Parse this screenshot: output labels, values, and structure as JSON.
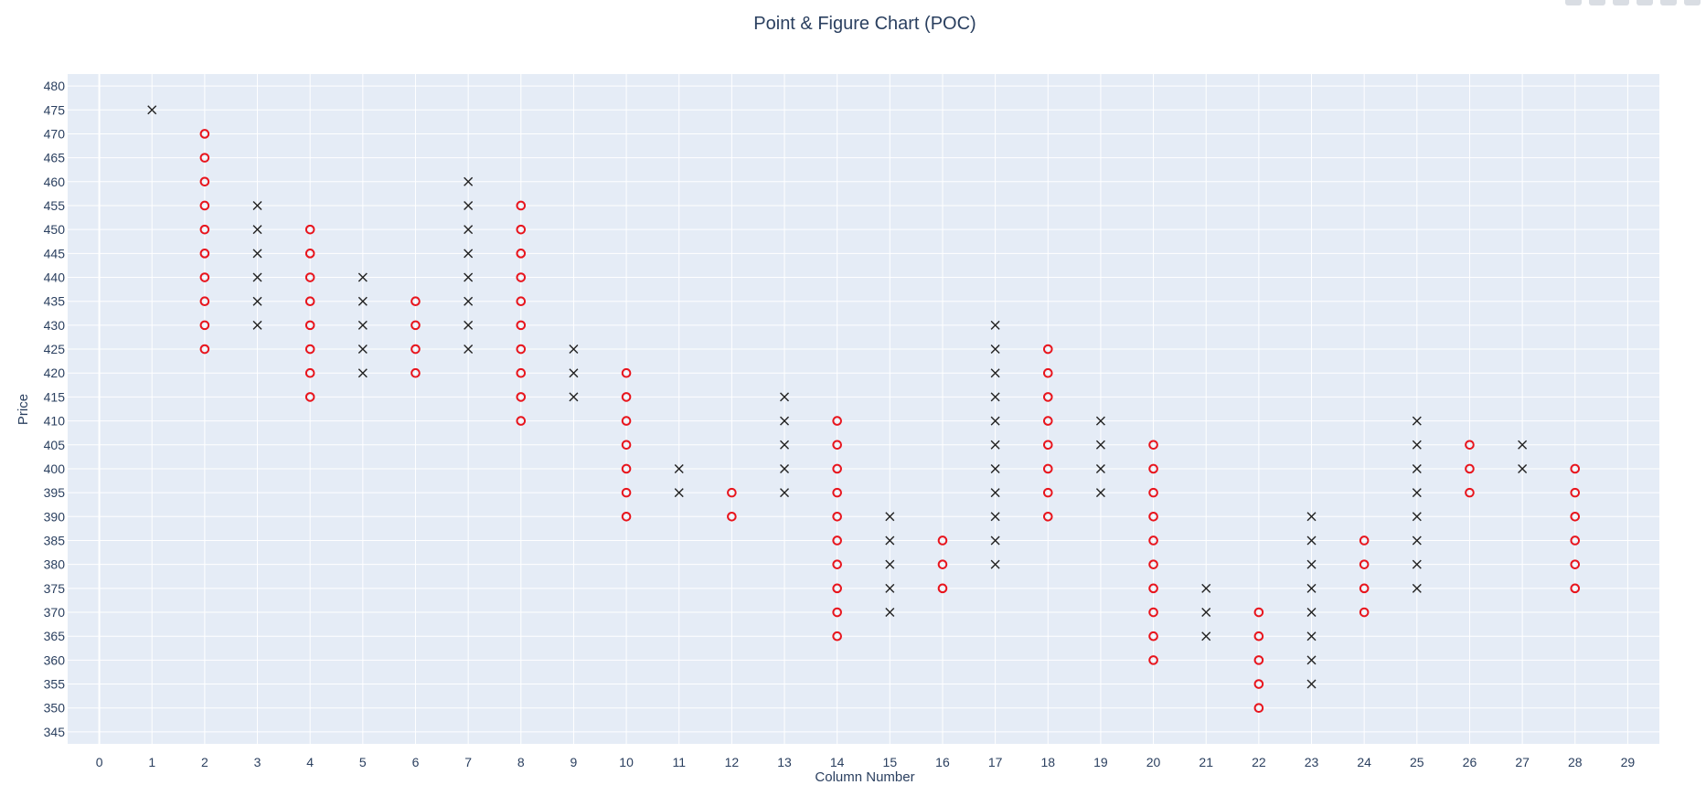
{
  "chart_data": {
    "type": "scatter",
    "title": "Point & Figure Chart (POC)",
    "xlabel": "Column Number",
    "ylabel": "Price",
    "xlim": [
      -0.6,
      29.6
    ],
    "ylim": [
      342.5,
      482.5
    ],
    "x_ticks": [
      0,
      1,
      2,
      3,
      4,
      5,
      6,
      7,
      8,
      9,
      10,
      11,
      12,
      13,
      14,
      15,
      16,
      17,
      18,
      19,
      20,
      21,
      22,
      23,
      24,
      25,
      26,
      27,
      28,
      29
    ],
    "y_ticks": [
      345,
      350,
      355,
      360,
      365,
      370,
      375,
      380,
      385,
      390,
      395,
      400,
      405,
      410,
      415,
      420,
      425,
      430,
      435,
      440,
      445,
      450,
      455,
      460,
      465,
      470,
      475,
      480
    ],
    "grid": true,
    "colors": {
      "plot_bg": "#e5ecf6",
      "grid": "#ffffff",
      "x_marker": "#222222",
      "o_marker": "#e8141c",
      "text": "#2a3f5f"
    },
    "series": [
      {
        "marker": "x",
        "points": [
          [
            1,
            475
          ],
          [
            3,
            430
          ],
          [
            3,
            435
          ],
          [
            3,
            440
          ],
          [
            3,
            445
          ],
          [
            3,
            450
          ],
          [
            3,
            455
          ],
          [
            5,
            420
          ],
          [
            5,
            425
          ],
          [
            5,
            430
          ],
          [
            5,
            435
          ],
          [
            5,
            440
          ],
          [
            7,
            425
          ],
          [
            7,
            430
          ],
          [
            7,
            435
          ],
          [
            7,
            440
          ],
          [
            7,
            445
          ],
          [
            7,
            450
          ],
          [
            7,
            455
          ],
          [
            7,
            460
          ],
          [
            9,
            415
          ],
          [
            9,
            420
          ],
          [
            9,
            425
          ],
          [
            11,
            395
          ],
          [
            11,
            400
          ],
          [
            13,
            395
          ],
          [
            13,
            400
          ],
          [
            13,
            405
          ],
          [
            13,
            410
          ],
          [
            13,
            415
          ],
          [
            15,
            370
          ],
          [
            15,
            375
          ],
          [
            15,
            380
          ],
          [
            15,
            385
          ],
          [
            15,
            390
          ],
          [
            17,
            380
          ],
          [
            17,
            385
          ],
          [
            17,
            390
          ],
          [
            17,
            395
          ],
          [
            17,
            400
          ],
          [
            17,
            405
          ],
          [
            17,
            410
          ],
          [
            17,
            415
          ],
          [
            17,
            420
          ],
          [
            17,
            425
          ],
          [
            17,
            430
          ],
          [
            19,
            395
          ],
          [
            19,
            400
          ],
          [
            19,
            405
          ],
          [
            19,
            410
          ],
          [
            21,
            365
          ],
          [
            21,
            370
          ],
          [
            21,
            375
          ],
          [
            23,
            355
          ],
          [
            23,
            360
          ],
          [
            23,
            365
          ],
          [
            23,
            370
          ],
          [
            23,
            375
          ],
          [
            23,
            380
          ],
          [
            23,
            385
          ],
          [
            23,
            390
          ],
          [
            25,
            375
          ],
          [
            25,
            380
          ],
          [
            25,
            385
          ],
          [
            25,
            390
          ],
          [
            25,
            395
          ],
          [
            25,
            400
          ],
          [
            25,
            405
          ],
          [
            25,
            410
          ],
          [
            27,
            400
          ],
          [
            27,
            405
          ]
        ]
      },
      {
        "marker": "o",
        "points": [
          [
            2,
            425
          ],
          [
            2,
            430
          ],
          [
            2,
            435
          ],
          [
            2,
            440
          ],
          [
            2,
            445
          ],
          [
            2,
            450
          ],
          [
            2,
            455
          ],
          [
            2,
            460
          ],
          [
            2,
            465
          ],
          [
            2,
            470
          ],
          [
            4,
            415
          ],
          [
            4,
            420
          ],
          [
            4,
            425
          ],
          [
            4,
            430
          ],
          [
            4,
            435
          ],
          [
            4,
            440
          ],
          [
            4,
            445
          ],
          [
            4,
            450
          ],
          [
            6,
            420
          ],
          [
            6,
            425
          ],
          [
            6,
            430
          ],
          [
            6,
            435
          ],
          [
            8,
            410
          ],
          [
            8,
            415
          ],
          [
            8,
            420
          ],
          [
            8,
            425
          ],
          [
            8,
            430
          ],
          [
            8,
            435
          ],
          [
            8,
            440
          ],
          [
            8,
            445
          ],
          [
            8,
            450
          ],
          [
            8,
            455
          ],
          [
            10,
            390
          ],
          [
            10,
            395
          ],
          [
            10,
            400
          ],
          [
            10,
            405
          ],
          [
            10,
            410
          ],
          [
            10,
            415
          ],
          [
            10,
            420
          ],
          [
            12,
            390
          ],
          [
            12,
            395
          ],
          [
            14,
            365
          ],
          [
            14,
            370
          ],
          [
            14,
            375
          ],
          [
            14,
            380
          ],
          [
            14,
            385
          ],
          [
            14,
            390
          ],
          [
            14,
            395
          ],
          [
            14,
            400
          ],
          [
            14,
            405
          ],
          [
            14,
            410
          ],
          [
            16,
            375
          ],
          [
            16,
            380
          ],
          [
            16,
            385
          ],
          [
            18,
            390
          ],
          [
            18,
            395
          ],
          [
            18,
            400
          ],
          [
            18,
            405
          ],
          [
            18,
            410
          ],
          [
            18,
            415
          ],
          [
            18,
            420
          ],
          [
            18,
            425
          ],
          [
            20,
            360
          ],
          [
            20,
            365
          ],
          [
            20,
            370
          ],
          [
            20,
            375
          ],
          [
            20,
            380
          ],
          [
            20,
            385
          ],
          [
            20,
            390
          ],
          [
            20,
            395
          ],
          [
            20,
            400
          ],
          [
            20,
            405
          ],
          [
            22,
            350
          ],
          [
            22,
            355
          ],
          [
            22,
            360
          ],
          [
            22,
            365
          ],
          [
            22,
            370
          ],
          [
            24,
            370
          ],
          [
            24,
            375
          ],
          [
            24,
            380
          ],
          [
            24,
            385
          ],
          [
            26,
            395
          ],
          [
            26,
            400
          ],
          [
            26,
            405
          ],
          [
            28,
            375
          ],
          [
            28,
            380
          ],
          [
            28,
            385
          ],
          [
            28,
            390
          ],
          [
            28,
            395
          ],
          [
            28,
            400
          ]
        ]
      }
    ]
  }
}
